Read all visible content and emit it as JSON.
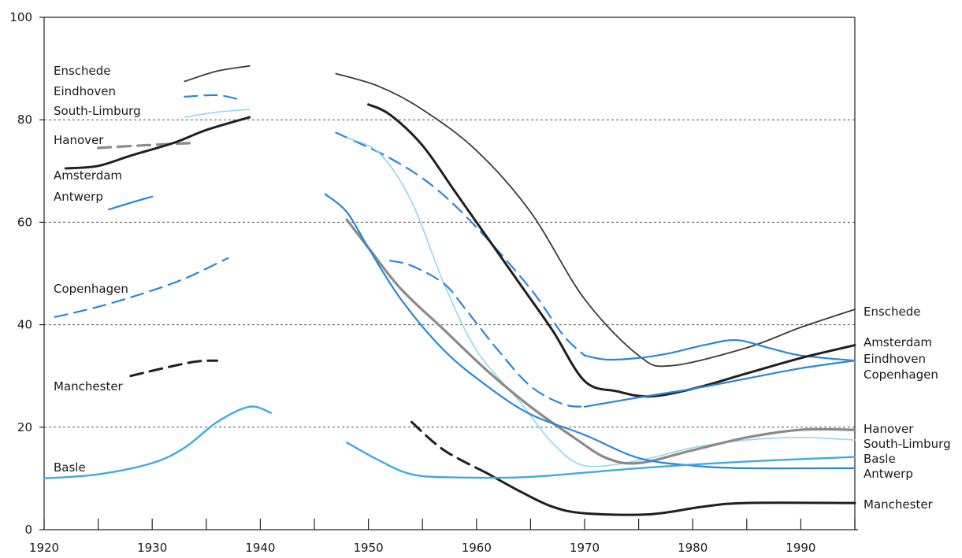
{
  "chart_data": {
    "type": "line",
    "title": "",
    "xlabel": "",
    "ylabel": "",
    "xlim": [
      1920,
      1995
    ],
    "ylim": [
      0,
      100
    ],
    "x_ticks": [
      1920,
      1930,
      1940,
      1950,
      1960,
      1970,
      1980,
      1990
    ],
    "y_ticks": [
      0,
      20,
      40,
      60,
      80,
      100
    ],
    "grid": "dashed horizontal lines at 20, 40, 60, 80",
    "legend": "inline labels: at left of the 1920s–1930s segments and at right end of the lines",
    "colors": {
      "black": "#1f1f1f",
      "dark_gray": "#3a3a3a",
      "gray": "#8a8a8a",
      "dark_blue": "#1c6fc4",
      "blue": "#2a86d8",
      "light_blue": "#3fa9e6",
      "pale_blue": "#93d6f2"
    },
    "series": [
      {
        "name": "Enschede",
        "color_key": "dark_gray",
        "segments": [
          {
            "style": "solid",
            "points": [
              [
                1933,
                87.5
              ],
              [
                1936,
                89.5
              ],
              [
                1939,
                90.5
              ]
            ]
          },
          {
            "style": "solid",
            "points": [
              [
                1947,
                89
              ],
              [
                1951,
                86.5
              ],
              [
                1955,
                82
              ],
              [
                1960,
                74
              ],
              [
                1965,
                62
              ],
              [
                1970,
                45
              ],
              [
                1975,
                34
              ],
              [
                1978,
                32
              ],
              [
                1985,
                35.5
              ],
              [
                1990,
                39.5
              ],
              [
                1995,
                43
              ]
            ]
          }
        ]
      },
      {
        "name": "Eindhoven",
        "color_key": "blue",
        "segments": [
          {
            "style": "dashed",
            "points": [
              [
                1933,
                84.5
              ],
              [
                1936,
                84.8
              ],
              [
                1938,
                84
              ]
            ]
          },
          {
            "style": "dashed",
            "points": [
              [
                1947,
                77.5
              ],
              [
                1952,
                72.5
              ],
              [
                1956,
                67
              ],
              [
                1960,
                59
              ],
              [
                1965,
                47
              ],
              [
                1968,
                38
              ],
              [
                1970,
                34
              ]
            ]
          },
          {
            "style": "solid",
            "points": [
              [
                1970,
                34
              ],
              [
                1972,
                33.2
              ],
              [
                1975,
                33.5
              ],
              [
                1978,
                34.5
              ],
              [
                1981,
                36
              ],
              [
                1984,
                37
              ],
              [
                1987,
                35.5
              ],
              [
                1990,
                34
              ],
              [
                1995,
                33
              ]
            ]
          }
        ]
      },
      {
        "name": "South-Limburg",
        "color_key": "pale_blue",
        "segments": [
          {
            "style": "solid",
            "points": [
              [
                1933,
                80.5
              ],
              [
                1936,
                81.5
              ],
              [
                1939,
                82
              ]
            ]
          },
          {
            "style": "solid",
            "points": [
              [
                1948,
                76.5
              ],
              [
                1951,
                73.5
              ],
              [
                1954,
                64
              ],
              [
                1957,
                48
              ],
              [
                1960,
                35
              ],
              [
                1964,
                25
              ],
              [
                1967,
                17
              ],
              [
                1970,
                12.5
              ],
              [
                1975,
                13.5
              ],
              [
                1980,
                16
              ],
              [
                1985,
                17.5
              ],
              [
                1990,
                18
              ],
              [
                1995,
                17.5
              ]
            ]
          }
        ]
      },
      {
        "name": "Hanover",
        "color_key": "gray",
        "segments": [
          {
            "style": "dashed",
            "points": [
              [
                1925,
                74.5
              ],
              [
                1929,
                75
              ],
              [
                1934,
                75.5
              ]
            ]
          },
          {
            "style": "solid",
            "points": [
              [
                1948,
                60.5
              ],
              [
                1950,
                55
              ],
              [
                1953,
                47
              ],
              [
                1957,
                39
              ],
              [
                1961,
                31
              ],
              [
                1965,
                24
              ],
              [
                1969,
                18
              ],
              [
                1972,
                14
              ],
              [
                1975,
                13
              ],
              [
                1980,
                15.5
              ],
              [
                1985,
                18
              ],
              [
                1990,
                19.5
              ],
              [
                1995,
                19.5
              ]
            ]
          }
        ]
      },
      {
        "name": "Amsterdam",
        "color_key": "black",
        "segments": [
          {
            "style": "solid",
            "points": [
              [
                1922,
                70.5
              ],
              [
                1925,
                71
              ],
              [
                1928,
                73
              ],
              [
                1932,
                75.5
              ],
              [
                1935,
                78
              ],
              [
                1939,
                80.5
              ]
            ]
          },
          {
            "style": "solid",
            "points": [
              [
                1950,
                83
              ],
              [
                1952,
                81
              ],
              [
                1955,
                75
              ],
              [
                1958,
                66
              ],
              [
                1961,
                57
              ],
              [
                1964,
                48
              ],
              [
                1967,
                39
              ],
              [
                1970,
                29
              ],
              [
                1973,
                27
              ],
              [
                1976,
                26
              ],
              [
                1980,
                27.5
              ],
              [
                1985,
                30.5
              ],
              [
                1990,
                33.5
              ],
              [
                1995,
                36
              ]
            ]
          }
        ]
      },
      {
        "name": "Antwerp",
        "color_key": "blue",
        "segments": [
          {
            "style": "solid",
            "points": [
              [
                1926,
                62.5
              ],
              [
                1928,
                63.8
              ],
              [
                1930,
                65
              ]
            ]
          },
          {
            "style": "solid",
            "points": [
              [
                1946,
                65.5
              ],
              [
                1948,
                62
              ],
              [
                1950,
                55
              ],
              [
                1953,
                45
              ],
              [
                1957,
                35
              ],
              [
                1961,
                28
              ],
              [
                1965,
                22.5
              ],
              [
                1970,
                18.5
              ],
              [
                1975,
                14
              ],
              [
                1980,
                12.5
              ],
              [
                1985,
                12
              ],
              [
                1995,
                12
              ]
            ]
          }
        ]
      },
      {
        "name": "Copenhagen",
        "color_key": "blue",
        "segments": [
          {
            "style": "dashed",
            "points": [
              [
                1921,
                41.5
              ],
              [
                1925,
                43.5
              ],
              [
                1929,
                46
              ],
              [
                1933,
                49
              ],
              [
                1937,
                53
              ]
            ]
          },
          {
            "style": "dashed",
            "points": [
              [
                1952,
                52.5
              ],
              [
                1954,
                51.5
              ],
              [
                1957,
                48
              ],
              [
                1959,
                43
              ],
              [
                1962,
                35
              ],
              [
                1965,
                28
              ],
              [
                1968,
                24.5
              ],
              [
                1970,
                24
              ]
            ]
          },
          {
            "style": "solid",
            "points": [
              [
                1970,
                24
              ],
              [
                1975,
                25.8
              ],
              [
                1980,
                27.5
              ],
              [
                1985,
                29.5
              ],
              [
                1990,
                31.5
              ],
              [
                1995,
                33
              ]
            ]
          }
        ]
      },
      {
        "name": "Manchester",
        "color_key": "black",
        "segments": [
          {
            "style": "dashed",
            "points": [
              [
                1928,
                30
              ],
              [
                1931,
                31.5
              ],
              [
                1934,
                32.8
              ],
              [
                1936,
                33
              ]
            ]
          },
          {
            "style": "dashed",
            "points": [
              [
                1954,
                21
              ],
              [
                1957,
                15.5
              ],
              [
                1961,
                11
              ]
            ]
          },
          {
            "style": "solid",
            "points": [
              [
                1961,
                11
              ],
              [
                1964,
                7.5
              ],
              [
                1967,
                4.5
              ],
              [
                1970,
                3.2
              ],
              [
                1976,
                3
              ],
              [
                1981,
                4.5
              ],
              [
                1985,
                5.2
              ],
              [
                1995,
                5.2
              ]
            ]
          }
        ]
      },
      {
        "name": "Basle",
        "color_key": "light_blue",
        "segments": [
          {
            "style": "solid",
            "points": [
              [
                1920,
                10
              ],
              [
                1925,
                10.8
              ],
              [
                1930,
                13
              ],
              [
                1933,
                16
              ],
              [
                1936,
                21
              ],
              [
                1939,
                24
              ],
              [
                1941,
                22.8
              ]
            ]
          },
          {
            "style": "solid",
            "points": [
              [
                1948,
                17
              ],
              [
                1951,
                13.5
              ],
              [
                1954,
                10.8
              ],
              [
                1958,
                10.2
              ],
              [
                1965,
                10.3
              ],
              [
                1975,
                12
              ],
              [
                1985,
                13.3
              ],
              [
                1995,
                14.2
              ]
            ]
          }
        ]
      }
    ],
    "left_labels": [
      "Enschede",
      "Eindhoven",
      "South-Limburg",
      "Hanover",
      "Amsterdam",
      "Antwerp",
      "Copenhagen",
      "Manchester",
      "Basle"
    ],
    "right_labels": [
      "Enschede",
      "Amsterdam",
      "Eindhoven",
      "Copenhagen",
      "Hanover",
      "South-Limburg",
      "Basle",
      "Antwerp",
      "Manchester"
    ]
  }
}
